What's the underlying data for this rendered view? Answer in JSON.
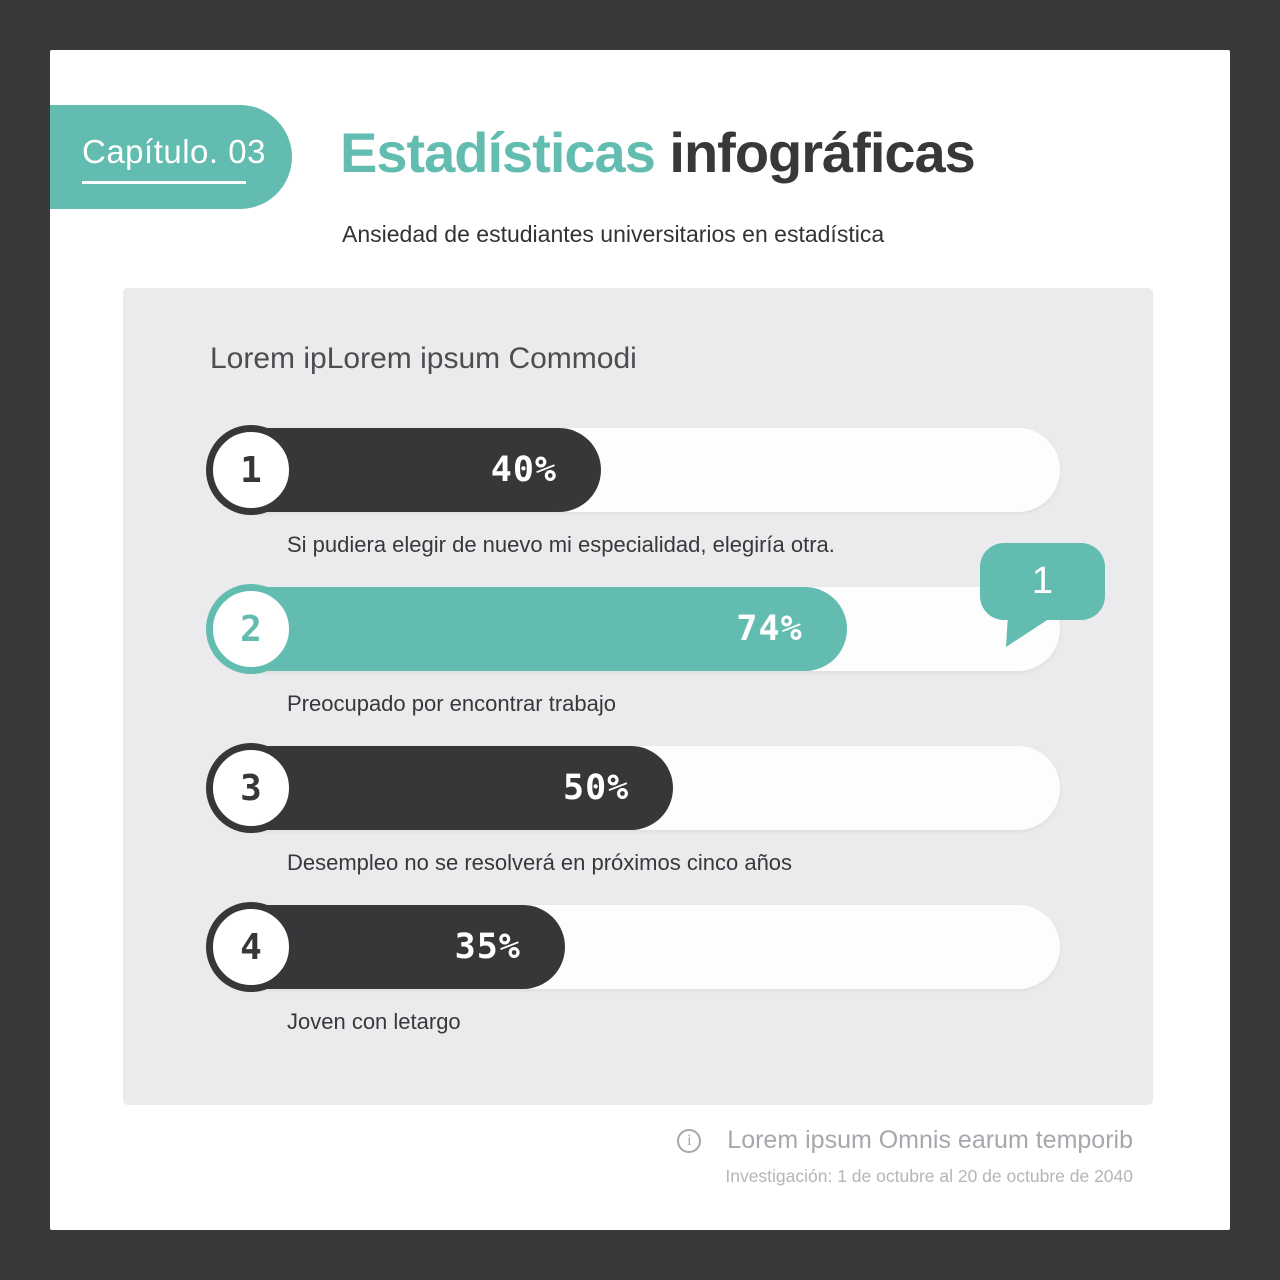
{
  "badge": {
    "label": "Capítulo. 03"
  },
  "header": {
    "title_accent": "Estadísticas",
    "title_rest": " infográficas",
    "subtitle": "Ansiedad de estudiantes universitarios en estadística"
  },
  "panel": {
    "heading": "Lorem ipLorem ipsum Commodi",
    "items": [
      {
        "number": "1",
        "value": 40,
        "percent": "40%",
        "variant": "dark",
        "caption": "Si pudiera elegir de nuevo mi especialidad, elegiría otra."
      },
      {
        "number": "2",
        "value": 74,
        "percent": "74%",
        "variant": "teal",
        "caption": "Preocupado por encontrar trabajo"
      },
      {
        "number": "3",
        "value": 50,
        "percent": "50%",
        "variant": "dark",
        "caption": "Desempleo no se resolverá en próximos cinco años"
      },
      {
        "number": "4",
        "value": 35,
        "percent": "35%",
        "variant": "dark",
        "caption": "Joven con letargo"
      }
    ],
    "bubble_label": "1"
  },
  "footer": {
    "info_icon": "i",
    "note": "Lorem ipsum Omnis earum temporib",
    "research": "Investigación: 1 de octubre al 20 de octubre de 2040"
  },
  "colors": {
    "teal": "#62BDB0",
    "dark": "#39363A",
    "frame": "#3A383B",
    "panel_bg": "#EBEAEC",
    "card_bg": "#FFFFFF"
  },
  "chart_data": {
    "type": "bar",
    "orientation": "horizontal",
    "title": "Lorem ipLorem ipsum Commodi",
    "categories": [
      "Si pudiera elegir de nuevo mi especialidad, elegiría otra.",
      "Preocupado por encontrar trabajo",
      "Desempleo no se resolverá en próximos cinco años",
      "Joven con letargo"
    ],
    "values": [
      40,
      74,
      50,
      35
    ],
    "unit": "%",
    "xlim": [
      0,
      100
    ],
    "highlighted_index": 1,
    "annotation": {
      "text": "1",
      "attached_to": "Preocupado por encontrar trabajo"
    }
  }
}
